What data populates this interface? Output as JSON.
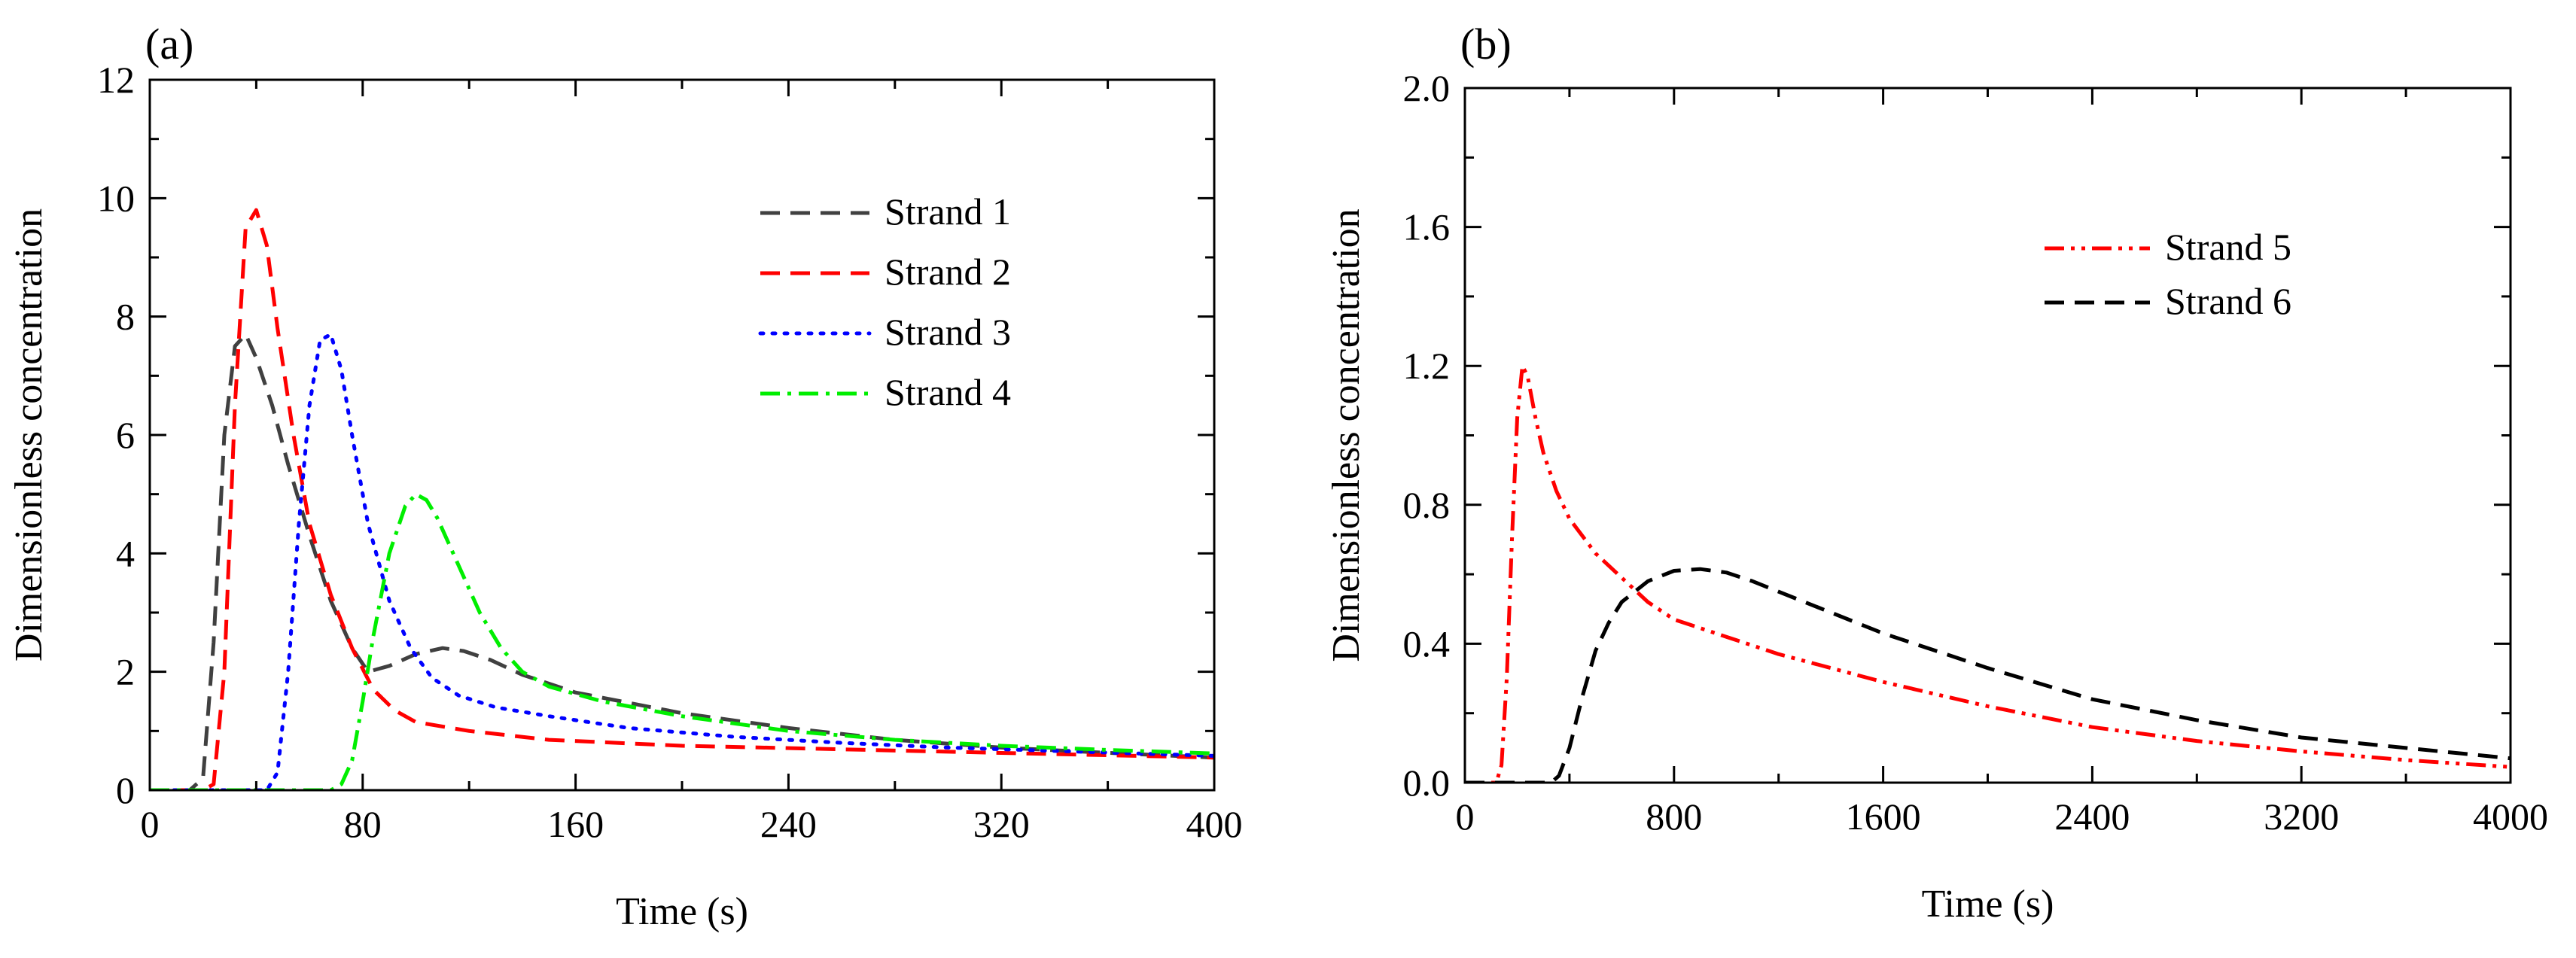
{
  "chart_data": [
    {
      "type": "line",
      "panel_label": "(a)",
      "xlabel": "Time (s)",
      "ylabel": "Dimensionless concentration",
      "xlim": [
        0,
        400
      ],
      "ylim": [
        0,
        12
      ],
      "xticks": [
        0,
        80,
        160,
        240,
        320,
        400
      ],
      "yticks": [
        0,
        2,
        4,
        6,
        8,
        10,
        12
      ],
      "xtick_labels": [
        "0",
        "80",
        "160",
        "240",
        "320",
        "400"
      ],
      "ytick_labels": [
        "0",
        "2",
        "4",
        "6",
        "8",
        "10",
        "12"
      ],
      "grid": false,
      "legend_position": "top-right",
      "series": [
        {
          "name": "Strand 1",
          "color": "#404040",
          "style": "dashed",
          "x": [
            0,
            15,
            20,
            24,
            28,
            32,
            36,
            40,
            46,
            52,
            60,
            68,
            76,
            82,
            90,
            100,
            110,
            118,
            128,
            140,
            160,
            200,
            240,
            280,
            320,
            360,
            400
          ],
          "y": [
            0,
            0,
            0.2,
            2.5,
            6.0,
            7.5,
            7.7,
            7.3,
            6.5,
            5.5,
            4.3,
            3.2,
            2.4,
            2.0,
            2.1,
            2.3,
            2.4,
            2.35,
            2.2,
            1.95,
            1.65,
            1.3,
            1.05,
            0.85,
            0.72,
            0.63,
            0.55
          ]
        },
        {
          "name": "Strand 2",
          "color": "#ff0000",
          "style": "dashed",
          "x": [
            0,
            20,
            24,
            28,
            32,
            36,
            40,
            44,
            48,
            54,
            60,
            68,
            76,
            84,
            92,
            100,
            120,
            150,
            200,
            250,
            300,
            350,
            400
          ],
          "y": [
            0,
            0,
            0.1,
            2.0,
            6.5,
            9.5,
            9.8,
            9.2,
            7.8,
            6.0,
            4.5,
            3.3,
            2.4,
            1.7,
            1.35,
            1.15,
            1.0,
            0.85,
            0.75,
            0.7,
            0.65,
            0.6,
            0.55
          ]
        },
        {
          "name": "Strand 3",
          "color": "#0000ff",
          "style": "dotted",
          "x": [
            0,
            44,
            48,
            52,
            56,
            60,
            64,
            68,
            72,
            76,
            82,
            90,
            98,
            106,
            116,
            130,
            150,
            180,
            220,
            260,
            300,
            350,
            400
          ],
          "y": [
            0,
            0,
            0.3,
            2.0,
            4.5,
            6.5,
            7.6,
            7.7,
            7.1,
            6.0,
            4.5,
            3.2,
            2.4,
            1.9,
            1.6,
            1.4,
            1.25,
            1.05,
            0.9,
            0.8,
            0.72,
            0.65,
            0.58
          ]
        },
        {
          "name": "Strand 4",
          "color": "#00ee00",
          "style": "dashdot",
          "x": [
            0,
            68,
            72,
            76,
            80,
            84,
            90,
            96,
            100,
            104,
            108,
            116,
            124,
            132,
            140,
            150,
            170,
            200,
            240,
            280,
            320,
            360,
            400
          ],
          "y": [
            0,
            0,
            0.1,
            0.5,
            1.5,
            2.6,
            4.0,
            4.8,
            5.0,
            4.9,
            4.6,
            3.8,
            3.0,
            2.4,
            2.0,
            1.75,
            1.5,
            1.25,
            1.0,
            0.85,
            0.75,
            0.68,
            0.62
          ]
        }
      ]
    },
    {
      "type": "line",
      "panel_label": "(b)",
      "xlabel": "Time (s)",
      "ylabel": "Dimensionless concentration",
      "xlim": [
        0,
        4000
      ],
      "ylim": [
        0,
        2.0
      ],
      "xticks": [
        0,
        800,
        1600,
        2400,
        3200,
        4000
      ],
      "yticks": [
        0,
        0.4,
        0.8,
        1.2,
        1.6,
        2.0
      ],
      "xtick_labels": [
        "0",
        "800",
        "1600",
        "2400",
        "3200",
        "4000"
      ],
      "ytick_labels": [
        "0.0",
        "0.4",
        "0.8",
        "1.2",
        "1.6",
        "2.0"
      ],
      "grid": false,
      "legend_position": "top-right",
      "series": [
        {
          "name": "Strand 5",
          "color": "#ff0000",
          "style": "dashdotdot",
          "x": [
            0,
            120,
            140,
            160,
            180,
            200,
            220,
            240,
            270,
            300,
            350,
            400,
            500,
            600,
            700,
            800,
            1000,
            1200,
            1600,
            2000,
            2400,
            2800,
            3200,
            3600,
            4000
          ],
          "y": [
            0,
            0,
            0.05,
            0.3,
            0.7,
            1.05,
            1.2,
            1.17,
            1.05,
            0.95,
            0.84,
            0.76,
            0.66,
            0.59,
            0.52,
            0.47,
            0.42,
            0.37,
            0.29,
            0.22,
            0.16,
            0.12,
            0.09,
            0.065,
            0.045
          ]
        },
        {
          "name": "Strand 6",
          "color": "#000000",
          "style": "dashed",
          "x": [
            0,
            330,
            360,
            400,
            450,
            500,
            550,
            600,
            700,
            800,
            900,
            1000,
            1100,
            1200,
            1400,
            1600,
            2000,
            2400,
            2800,
            3200,
            3600,
            4000
          ],
          "y": [
            0,
            0,
            0.02,
            0.1,
            0.25,
            0.38,
            0.46,
            0.52,
            0.58,
            0.61,
            0.615,
            0.605,
            0.58,
            0.55,
            0.49,
            0.43,
            0.33,
            0.24,
            0.18,
            0.13,
            0.1,
            0.07
          ]
        }
      ]
    }
  ]
}
